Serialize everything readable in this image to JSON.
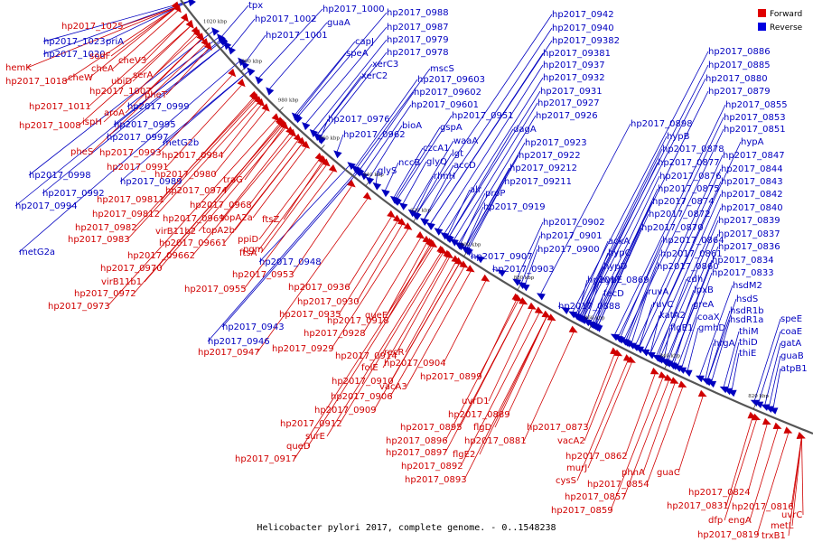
{
  "caption": "Helicobacter pylori 2017, complete genome. - 0..1548238",
  "legend": [
    {
      "label": "Forward",
      "color": "#e00000"
    },
    {
      "label": "Reverse",
      "color": "#0000e0"
    }
  ],
  "colors": {
    "forward": "#d00000",
    "reverse": "#0000c0",
    "backbone": "#555555"
  },
  "ticks": [
    "1020 kbp",
    "1000 kbp",
    "980 kbp",
    "960 kbp",
    "940 kbp",
    "920 kbp",
    "900 kbp",
    "880 kbp",
    "860 kbp",
    "840 kbp",
    "820 kbp"
  ],
  "features": [
    {
      "t": "tpx",
      "s": "R"
    },
    {
      "t": "hp2017_1002",
      "s": "R"
    },
    {
      "t": "hp2017_1000",
      "s": "R"
    },
    {
      "t": "hp2017_0988",
      "s": "R"
    },
    {
      "t": "guaA",
      "s": "R"
    },
    {
      "t": "hp2017_1001",
      "s": "R"
    },
    {
      "t": "hp2017_0987",
      "s": "R"
    },
    {
      "t": "capJ",
      "s": "R"
    },
    {
      "t": "hp2017_0979",
      "s": "R"
    },
    {
      "t": "speA",
      "s": "R"
    },
    {
      "t": "hp2017_0978",
      "s": "R"
    },
    {
      "t": "xerC3",
      "s": "R"
    },
    {
      "t": "xerC2",
      "s": "R"
    },
    {
      "t": "mscS",
      "s": "R"
    },
    {
      "t": "hp2017_09603",
      "s": "R"
    },
    {
      "t": "hp2017_09602",
      "s": "R"
    },
    {
      "t": "hp2017_09601",
      "s": "R"
    },
    {
      "t": "hp2017_0976",
      "s": "R"
    },
    {
      "t": "bioA",
      "s": "R"
    },
    {
      "t": "hp2017_0962",
      "s": "R"
    },
    {
      "t": "glyS",
      "s": "R"
    },
    {
      "t": "nccB",
      "s": "R"
    },
    {
      "t": "czcA1",
      "s": "R"
    },
    {
      "t": "glyQ",
      "s": "R"
    },
    {
      "t": "gspA",
      "s": "R"
    },
    {
      "t": "waaA",
      "s": "R"
    },
    {
      "t": "lgt",
      "s": "R"
    },
    {
      "t": "rlmH",
      "s": "R"
    },
    {
      "t": "accD",
      "s": "R"
    },
    {
      "t": "hp2017_0951",
      "s": "R"
    },
    {
      "t": "dagA",
      "s": "R"
    },
    {
      "t": "alr",
      "s": "R"
    },
    {
      "t": "proP",
      "s": "R"
    },
    {
      "t": "hp2017_0942",
      "s": "R"
    },
    {
      "t": "hp2017_0940",
      "s": "R"
    },
    {
      "t": "hp2017_09382",
      "s": "R"
    },
    {
      "t": "hp2017_09381",
      "s": "R"
    },
    {
      "t": "hp2017_0937",
      "s": "R"
    },
    {
      "t": "hp2017_0932",
      "s": "R"
    },
    {
      "t": "hp2017_0931",
      "s": "R"
    },
    {
      "t": "hp2017_0927",
      "s": "R"
    },
    {
      "t": "hp2017_0926",
      "s": "R"
    },
    {
      "t": "hp2017_0923",
      "s": "R"
    },
    {
      "t": "hp2017_0922",
      "s": "R"
    },
    {
      "t": "hp2017_09212",
      "s": "R"
    },
    {
      "t": "hp2017_09211",
      "s": "R"
    },
    {
      "t": "hp2017_0919",
      "s": "R"
    },
    {
      "t": "hp2017_0902",
      "s": "R"
    },
    {
      "t": "hp2017_0901",
      "s": "R"
    },
    {
      "t": "hp2017_0900",
      "s": "R"
    },
    {
      "t": "hp2017_0907",
      "s": "R"
    },
    {
      "t": "hp2017_0903",
      "s": "R"
    },
    {
      "t": "hp2017_0898",
      "s": "R"
    },
    {
      "t": "hypB",
      "s": "R"
    },
    {
      "t": "hp2017_0878",
      "s": "R"
    },
    {
      "t": "hp2017_0877",
      "s": "R"
    },
    {
      "t": "hp2017_0876",
      "s": "R"
    },
    {
      "t": "hp2017_0875",
      "s": "R"
    },
    {
      "t": "hp2017_0874",
      "s": "R"
    },
    {
      "t": "hp2017_0872",
      "s": "R"
    },
    {
      "t": "hp2017_0870",
      "s": "R"
    },
    {
      "t": "ackA",
      "s": "R"
    },
    {
      "t": "hypC",
      "s": "R"
    },
    {
      "t": "hypD",
      "s": "R"
    },
    {
      "t": "hypE",
      "s": "R"
    },
    {
      "t": "fecD",
      "s": "R"
    },
    {
      "t": "hp2017_0869",
      "s": "R"
    },
    {
      "t": "hp2017_0888",
      "s": "R"
    },
    {
      "t": "hp2017_0864",
      "s": "R"
    },
    {
      "t": "hp2017_0861",
      "s": "R"
    },
    {
      "t": "hp2017_0860",
      "s": "R"
    },
    {
      "t": "cdh",
      "s": "R"
    },
    {
      "t": "ruvA",
      "s": "R"
    },
    {
      "t": "ruvC",
      "s": "R"
    },
    {
      "t": "katA2",
      "s": "R"
    },
    {
      "t": "flgE1",
      "s": "R"
    },
    {
      "t": "gmhD",
      "s": "R"
    },
    {
      "t": "coaX",
      "s": "R"
    },
    {
      "t": "greA",
      "s": "R"
    },
    {
      "t": "lpxB",
      "s": "R"
    },
    {
      "t": "hp2017_0886",
      "s": "R"
    },
    {
      "t": "hp2017_0885",
      "s": "R"
    },
    {
      "t": "hp2017_0880",
      "s": "R"
    },
    {
      "t": "hp2017_0879",
      "s": "R"
    },
    {
      "t": "hp2017_0855",
      "s": "R"
    },
    {
      "t": "hp2017_0853",
      "s": "R"
    },
    {
      "t": "hp2017_0851",
      "s": "R"
    },
    {
      "t": "hypA",
      "s": "R"
    },
    {
      "t": "hp2017_0847",
      "s": "R"
    },
    {
      "t": "hp2017_0844",
      "s": "R"
    },
    {
      "t": "hp2017_0843",
      "s": "R"
    },
    {
      "t": "hp2017_0842",
      "s": "R"
    },
    {
      "t": "hp2017_0840",
      "s": "R"
    },
    {
      "t": "hp2017_0839",
      "s": "R"
    },
    {
      "t": "hp2017_0837",
      "s": "R"
    },
    {
      "t": "hp2017_0836",
      "s": "R"
    },
    {
      "t": "hp2017_0834",
      "s": "R"
    },
    {
      "t": "hp2017_0833",
      "s": "R"
    },
    {
      "t": "hsdM2",
      "s": "R"
    },
    {
      "t": "hsdS",
      "s": "R"
    },
    {
      "t": "hsdR1b",
      "s": "R"
    },
    {
      "t": "hsdR1a",
      "s": "R"
    },
    {
      "t": "thiM",
      "s": "R"
    },
    {
      "t": "thiD",
      "s": "R"
    },
    {
      "t": "thiE",
      "s": "R"
    },
    {
      "t": "hrgA",
      "s": "R"
    },
    {
      "t": "speE",
      "s": "R"
    },
    {
      "t": "coaE",
      "s": "R"
    },
    {
      "t": "gatA",
      "s": "R"
    },
    {
      "t": "guaB",
      "s": "R"
    },
    {
      "t": "atpB1",
      "s": "R"
    },
    {
      "t": "hp2017_0999",
      "s": "R"
    },
    {
      "t": "hp2017_0995",
      "s": "R"
    },
    {
      "t": "hp2017_0997",
      "s": "R"
    },
    {
      "t": "metG2b",
      "s": "R"
    },
    {
      "t": "hp2017_0998",
      "s": "R"
    },
    {
      "t": "hp2017_0989",
      "s": "R"
    },
    {
      "t": "hp2017_0992",
      "s": "R"
    },
    {
      "t": "hp2017_0994",
      "s": "R"
    },
    {
      "t": "metG2a",
      "s": "R"
    },
    {
      "t": "hp2017_1023",
      "s": "R"
    },
    {
      "t": "priA",
      "s": "R"
    },
    {
      "t": "hp2017_1020",
      "s": "R"
    },
    {
      "t": "hp2017_0948",
      "s": "R"
    },
    {
      "t": "hp2017_0943",
      "s": "R"
    },
    {
      "t": "hp2017_0946",
      "s": "R"
    },
    {
      "t": "hp2017_1025",
      "s": "F"
    },
    {
      "t": "hemK",
      "s": "F"
    },
    {
      "t": "hp2017_1018",
      "s": "F"
    },
    {
      "t": "sodF",
      "s": "F"
    },
    {
      "t": "cheV3",
      "s": "F"
    },
    {
      "t": "cheA",
      "s": "F"
    },
    {
      "t": "cheW",
      "s": "F"
    },
    {
      "t": "ubiD",
      "s": "F"
    },
    {
      "t": "serA",
      "s": "F"
    },
    {
      "t": "hp2017_1007",
      "s": "F"
    },
    {
      "t": "pheT",
      "s": "F"
    },
    {
      "t": "hp2017_1011",
      "s": "F"
    },
    {
      "t": "aroA",
      "s": "F"
    },
    {
      "t": "hp2017_1008",
      "s": "F"
    },
    {
      "t": "ispH",
      "s": "F"
    },
    {
      "t": "pheS",
      "s": "F"
    },
    {
      "t": "hp2017_0993",
      "s": "F"
    },
    {
      "t": "hp2017_0984",
      "s": "F"
    },
    {
      "t": "hp2017_0991",
      "s": "F"
    },
    {
      "t": "hp2017_0980",
      "s": "F"
    },
    {
      "t": "traG",
      "s": "F"
    },
    {
      "t": "hp2017_0974",
      "s": "F"
    },
    {
      "t": "hp2017_09811",
      "s": "F"
    },
    {
      "t": "hp2017_0968",
      "s": "F"
    },
    {
      "t": "hp2017_09812",
      "s": "F"
    },
    {
      "t": "hp2017_0969",
      "s": "F"
    },
    {
      "t": "topA2a",
      "s": "F"
    },
    {
      "t": "hp2017_0982",
      "s": "F"
    },
    {
      "t": "virB11b2",
      "s": "F"
    },
    {
      "t": "topA2b",
      "s": "F"
    },
    {
      "t": "ftsZ",
      "s": "F"
    },
    {
      "t": "hp2017_0983",
      "s": "F"
    },
    {
      "t": "hp2017_09661",
      "s": "F"
    },
    {
      "t": "ppiD",
      "s": "F"
    },
    {
      "t": "pgm",
      "s": "F"
    },
    {
      "t": "hp2017_09662",
      "s": "F"
    },
    {
      "t": "ftsA",
      "s": "F"
    },
    {
      "t": "hp2017_0970",
      "s": "F"
    },
    {
      "t": "hp2017_0953",
      "s": "F"
    },
    {
      "t": "virB11b1",
      "s": "F"
    },
    {
      "t": "hp2017_0955",
      "s": "F"
    },
    {
      "t": "hp2017_0972",
      "s": "F"
    },
    {
      "t": "hp2017_0973",
      "s": "F"
    },
    {
      "t": "hp2017_0936",
      "s": "F"
    },
    {
      "t": "hp2017_0930",
      "s": "F"
    },
    {
      "t": "hp2017_0935",
      "s": "F"
    },
    {
      "t": "hp2017_0918",
      "s": "F"
    },
    {
      "t": "hp2017_0928",
      "s": "F"
    },
    {
      "t": "hp2017_0929",
      "s": "F"
    },
    {
      "t": "hp2017_0947",
      "s": "F"
    },
    {
      "t": "queE",
      "s": "F"
    },
    {
      "t": "hp2017_0914",
      "s": "F"
    },
    {
      "t": "recR",
      "s": "F"
    },
    {
      "t": "folE",
      "s": "F"
    },
    {
      "t": "hp2017_0904",
      "s": "F"
    },
    {
      "t": "hp2017_0910",
      "s": "F"
    },
    {
      "t": "vacA3",
      "s": "F"
    },
    {
      "t": "hp2017_0899",
      "s": "F"
    },
    {
      "t": "hp2017_0906",
      "s": "F"
    },
    {
      "t": "hp2017_0909",
      "s": "F"
    },
    {
      "t": "uvrD1",
      "s": "F"
    },
    {
      "t": "hp2017_0912",
      "s": "F"
    },
    {
      "t": "hp2017_0889",
      "s": "F"
    },
    {
      "t": "surE",
      "s": "F"
    },
    {
      "t": "hp2017_0895",
      "s": "F"
    },
    {
      "t": "flgD",
      "s": "F"
    },
    {
      "t": "hp2017_0873",
      "s": "F"
    },
    {
      "t": "hp2017_0896",
      "s": "F"
    },
    {
      "t": "hp2017_0881",
      "s": "F"
    },
    {
      "t": "vacA2",
      "s": "F"
    },
    {
      "t": "queD",
      "s": "F"
    },
    {
      "t": "hp2017_0897",
      "s": "F"
    },
    {
      "t": "flgE2",
      "s": "F"
    },
    {
      "t": "hp2017_0917",
      "s": "F"
    },
    {
      "t": "hp2017_0892",
      "s": "F"
    },
    {
      "t": "hp2017_0862",
      "s": "F"
    },
    {
      "t": "hp2017_0893",
      "s": "F"
    },
    {
      "t": "murJ",
      "s": "F"
    },
    {
      "t": "phnA",
      "s": "F"
    },
    {
      "t": "cysS",
      "s": "F"
    },
    {
      "t": "hp2017_0854",
      "s": "F"
    },
    {
      "t": "guaC",
      "s": "F"
    },
    {
      "t": "hp2017_0857",
      "s": "F"
    },
    {
      "t": "hp2017_0859",
      "s": "F"
    },
    {
      "t": "hp2017_0824",
      "s": "F"
    },
    {
      "t": "hp2017_0831",
      "s": "F"
    },
    {
      "t": "hp2017_0816",
      "s": "F"
    },
    {
      "t": "dfp",
      "s": "F"
    },
    {
      "t": "engA",
      "s": "F"
    },
    {
      "t": "uvrC",
      "s": "F"
    },
    {
      "t": "metL",
      "s": "F"
    },
    {
      "t": "hp2017_0819",
      "s": "F"
    },
    {
      "t": "trxB1",
      "s": "F"
    }
  ]
}
